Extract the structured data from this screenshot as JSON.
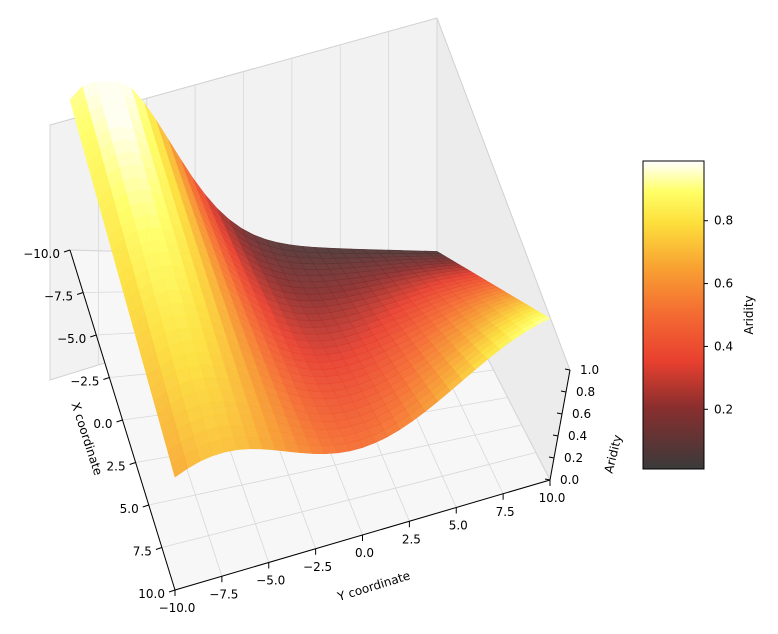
{
  "chart_data": {
    "type": "surface3d",
    "colormap": "hot",
    "xlabel": "X coordinate",
    "ylabel": "Y coordinate",
    "zlabel": "Aridity",
    "colorbar_label": "Aridity",
    "xlim": [
      -10,
      10
    ],
    "ylim": [
      -10,
      10
    ],
    "zlim": [
      0,
      1
    ],
    "x_ticks": [
      "−10.0",
      "−7.5",
      "−5.0",
      "−2.5",
      "0.0",
      "2.5",
      "5.0",
      "7.5",
      "10.0"
    ],
    "y_ticks": [
      "−10.0",
      "−7.5",
      "−5.0",
      "−2.5",
      "0.0",
      "2.5",
      "5.0",
      "7.5",
      "10.0"
    ],
    "z_ticks": [
      "0.0",
      "0.2",
      "0.4",
      "0.6",
      "0.8",
      "1.0"
    ],
    "colorbar_ticks": [
      "0.2",
      "0.4",
      "0.6",
      "0.8"
    ],
    "colorbar_range": [
      0.01,
      0.99
    ],
    "grid": true,
    "y_samples": [
      -10,
      -7.5,
      -5,
      -2.5,
      0,
      2.5,
      5,
      7.5,
      10
    ],
    "surface_profile_at_x_minus_10": [
      0.99,
      0.95,
      0.8,
      0.55,
      0.3,
      0.1,
      0.02,
      0.05,
      0.1
    ],
    "surface_profile_at_x_0": [
      0.7,
      0.65,
      0.55,
      0.4,
      0.25,
      0.12,
      0.05,
      0.1,
      0.2
    ],
    "surface_profile_at_x_10": [
      0.35,
      0.4,
      0.55,
      0.65,
      0.75,
      0.8,
      0.9,
      0.95,
      0.98
    ]
  }
}
